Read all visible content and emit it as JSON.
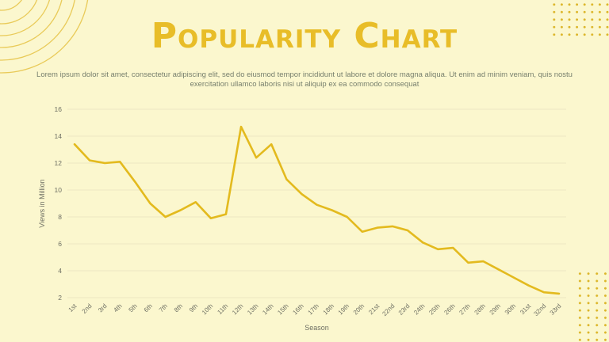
{
  "slide": {
    "title": "Popularity Chart",
    "subtitle_line1": "Lorem ipsum dolor sit amet, consectetur adipiscing elit, sed do eiusmod tempor incididunt ut labore et dolore magna aliqua. Ut enim ad minim veniam, quis nostu",
    "subtitle_line2": "exercitation ullamco laboris nisi ut aliquip ex ea commodo consequat"
  },
  "chart_data": {
    "type": "line",
    "title": "",
    "xlabel": "Season",
    "ylabel": "Views in Million",
    "categories": [
      "1st",
      "2nd",
      "3rd",
      "4th",
      "5th",
      "6th",
      "7th",
      "8th",
      "9th",
      "10th",
      "11th",
      "12th",
      "13th",
      "14th",
      "15th",
      "16th",
      "17th",
      "18th",
      "19th",
      "20th",
      "21st",
      "22nd",
      "23rd",
      "24th",
      "25th",
      "26th",
      "27th",
      "28th",
      "29th",
      "30th",
      "31st",
      "32nd",
      "33rd"
    ],
    "values": [
      13.4,
      12.2,
      12.0,
      12.1,
      10.6,
      9.0,
      8.0,
      8.5,
      9.1,
      7.9,
      8.2,
      14.7,
      12.4,
      13.4,
      10.8,
      9.7,
      8.9,
      8.5,
      8.0,
      6.9,
      7.2,
      7.3,
      7.0,
      6.1,
      5.6,
      5.7,
      4.6,
      4.7,
      4.1,
      3.5,
      2.9,
      2.4,
      2.3
    ],
    "ylim": [
      2,
      16
    ],
    "ytick_step": 2,
    "grid": true,
    "legend": "none",
    "line_color": "#E3BA1E"
  },
  "colors": {
    "background": "#FBF7CE",
    "accent_gold": "#E8BD28",
    "dot_gold": "#DCB62A",
    "gridline": "#EDE7C3",
    "axis_text": "#6F7064",
    "subtitle_text": "#78806E"
  }
}
